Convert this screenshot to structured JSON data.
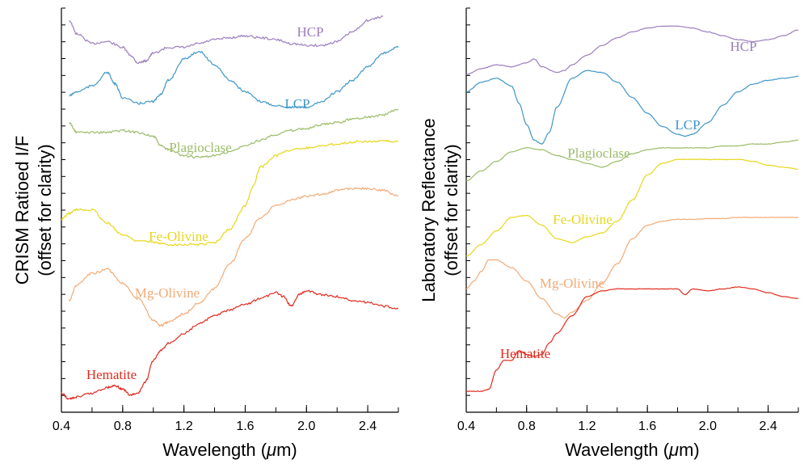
{
  "chart_data": [
    {
      "type": "line",
      "ylabel_line1": "CRISM Ratioed I/F",
      "ylabel_line2": "(offset for clarity)",
      "xlabel_prefix": "Wavelength (",
      "xlabel_mu": "μ",
      "xlabel_suffix": "m)",
      "xlim": [
        0.4,
        2.6
      ],
      "xticks": [
        "0.4",
        "0.8",
        "1.2",
        "1.6",
        "2.0",
        "2.4"
      ],
      "ylim": [
        0,
        10
      ],
      "grid": false,
      "series": [
        {
          "name": "HCP",
          "color": "#9b7ebf",
          "x": [
            0.45,
            0.5,
            0.6,
            0.7,
            0.8,
            0.85,
            0.9,
            0.95,
            1.0,
            1.1,
            1.2,
            1.3,
            1.4,
            1.5,
            1.6,
            1.7,
            1.8,
            1.9,
            2.0,
            2.1,
            2.2,
            2.3,
            2.4,
            2.5
          ],
          "y": [
            9.85,
            9.5,
            9.25,
            9.3,
            9.15,
            8.95,
            8.75,
            8.8,
            9.0,
            9.15,
            9.15,
            9.25,
            9.35,
            9.4,
            9.45,
            9.4,
            9.35,
            9.25,
            9.2,
            9.2,
            9.3,
            9.55,
            9.85,
            9.95
          ]
        },
        {
          "name": "LCP",
          "color": "#3f97c8",
          "x": [
            0.45,
            0.5,
            0.6,
            0.7,
            0.75,
            0.8,
            0.9,
            1.0,
            1.05,
            1.1,
            1.2,
            1.3,
            1.4,
            1.5,
            1.6,
            1.7,
            1.8,
            1.9,
            2.0,
            2.1,
            2.2,
            2.3,
            2.4,
            2.5,
            2.6
          ],
          "y": [
            7.9,
            8.0,
            8.15,
            8.5,
            8.2,
            7.85,
            7.7,
            7.75,
            7.95,
            8.3,
            8.85,
            9.05,
            8.7,
            8.3,
            8.0,
            7.75,
            7.65,
            7.6,
            7.6,
            7.75,
            8.0,
            8.3,
            8.65,
            9.0,
            9.15
          ]
        },
        {
          "name": "Plagioclase",
          "color": "#9bbb68",
          "x": [
            0.45,
            0.5,
            0.6,
            0.7,
            0.8,
            0.9,
            1.0,
            1.05,
            1.1,
            1.2,
            1.3,
            1.4,
            1.5,
            1.6,
            1.7,
            1.8,
            1.9,
            2.0,
            2.1,
            2.2,
            2.3,
            2.4,
            2.5,
            2.6
          ],
          "y": [
            7.2,
            6.95,
            6.95,
            6.95,
            7.0,
            6.95,
            6.85,
            6.6,
            6.5,
            6.35,
            6.3,
            6.35,
            6.45,
            6.6,
            6.75,
            6.9,
            7.0,
            7.05,
            7.15,
            7.2,
            7.3,
            7.35,
            7.4,
            7.55
          ]
        },
        {
          "name": "Fe-Olivine",
          "color": "#e6d71a",
          "x": [
            0.4,
            0.45,
            0.5,
            0.6,
            0.7,
            0.8,
            0.9,
            1.0,
            1.1,
            1.2,
            1.3,
            1.4,
            1.5,
            1.6,
            1.65,
            1.7,
            1.8,
            1.9,
            2.0,
            2.1,
            2.2,
            2.3,
            2.4,
            2.5,
            2.6
          ],
          "y": [
            4.7,
            4.85,
            4.95,
            4.95,
            4.6,
            4.3,
            4.15,
            4.1,
            4.05,
            4.05,
            4.05,
            4.1,
            4.45,
            5.05,
            5.55,
            6.05,
            6.35,
            6.5,
            6.55,
            6.6,
            6.65,
            6.7,
            6.72,
            6.72,
            6.72
          ]
        },
        {
          "name": "Mg-Olivine",
          "color": "#f2aa76",
          "x": [
            0.45,
            0.5,
            0.6,
            0.7,
            0.8,
            0.9,
            1.0,
            1.05,
            1.1,
            1.2,
            1.3,
            1.4,
            1.5,
            1.6,
            1.7,
            1.8,
            1.9,
            2.0,
            2.1,
            2.2,
            2.3,
            2.4,
            2.5,
            2.6
          ],
          "y": [
            2.6,
            3.0,
            3.3,
            3.4,
            3.05,
            2.65,
            2.1,
            1.95,
            2.05,
            2.25,
            2.55,
            2.9,
            3.55,
            4.2,
            4.75,
            5.05,
            5.2,
            5.3,
            5.35,
            5.45,
            5.5,
            5.5,
            5.45,
            5.3
          ]
        },
        {
          "name": "Hematite",
          "color": "#e02b20",
          "x": [
            0.4,
            0.45,
            0.5,
            0.6,
            0.7,
            0.75,
            0.8,
            0.85,
            0.9,
            0.95,
            1.0,
            1.05,
            1.1,
            1.2,
            1.3,
            1.4,
            1.5,
            1.6,
            1.7,
            1.8,
            1.85,
            1.9,
            1.95,
            2.0,
            2.1,
            2.2,
            2.3,
            2.4,
            2.5,
            2.6
          ],
          "y": [
            0.2,
            0.05,
            0.1,
            0.2,
            0.35,
            0.4,
            0.3,
            0.15,
            0.2,
            0.5,
            1.05,
            1.3,
            1.5,
            1.75,
            2.0,
            2.2,
            2.35,
            2.5,
            2.65,
            2.8,
            2.7,
            2.45,
            2.75,
            2.85,
            2.75,
            2.7,
            2.6,
            2.55,
            2.45,
            2.4
          ]
        }
      ]
    },
    {
      "type": "line",
      "ylabel_line1": "Laboratory Reflectance",
      "ylabel_line2": "(offset for clarity)",
      "xlabel_prefix": "Wavelength (",
      "xlabel_mu": "μ",
      "xlabel_suffix": "m)",
      "xlim": [
        0.4,
        2.6
      ],
      "xticks": [
        "0.4",
        "0.8",
        "1.2",
        "1.6",
        "2.0",
        "2.4"
      ],
      "ylim": [
        0,
        10
      ],
      "grid": false,
      "series": [
        {
          "name": "HCP",
          "color": "#9b7ebf",
          "x": [
            0.4,
            0.5,
            0.6,
            0.7,
            0.8,
            0.85,
            0.9,
            1.0,
            1.05,
            1.1,
            1.2,
            1.3,
            1.4,
            1.5,
            1.6,
            1.7,
            1.8,
            1.9,
            2.0,
            2.1,
            2.2,
            2.3,
            2.4,
            2.5,
            2.6
          ],
          "y": [
            8.45,
            8.6,
            8.7,
            8.65,
            8.75,
            8.85,
            8.65,
            8.5,
            8.55,
            8.7,
            8.95,
            9.2,
            9.4,
            9.55,
            9.65,
            9.7,
            9.7,
            9.65,
            9.55,
            9.45,
            9.35,
            9.3,
            9.35,
            9.45,
            9.6
          ]
        },
        {
          "name": "LCP",
          "color": "#3f97c8",
          "x": [
            0.4,
            0.5,
            0.6,
            0.7,
            0.75,
            0.8,
            0.85,
            0.9,
            0.95,
            1.0,
            1.1,
            1.2,
            1.3,
            1.4,
            1.5,
            1.6,
            1.7,
            1.8,
            1.85,
            1.9,
            2.0,
            2.1,
            2.2,
            2.3,
            2.4,
            2.5,
            2.6
          ],
          "y": [
            8.0,
            8.25,
            8.35,
            8.15,
            7.7,
            7.15,
            6.75,
            6.65,
            6.95,
            7.6,
            8.35,
            8.55,
            8.5,
            8.25,
            7.85,
            7.45,
            7.1,
            6.9,
            6.85,
            6.9,
            7.2,
            7.65,
            8.0,
            8.2,
            8.3,
            8.35,
            8.4
          ]
        },
        {
          "name": "Plagioclase",
          "color": "#9bbb68",
          "x": [
            0.4,
            0.5,
            0.6,
            0.7,
            0.8,
            0.9,
            1.0,
            1.1,
            1.2,
            1.3,
            1.4,
            1.5,
            1.6,
            1.7,
            1.8,
            1.9,
            2.0,
            2.1,
            2.2,
            2.3,
            2.4,
            2.5,
            2.6
          ],
          "y": [
            5.7,
            5.95,
            6.2,
            6.45,
            6.55,
            6.5,
            6.35,
            6.25,
            6.15,
            6.05,
            6.2,
            6.4,
            6.5,
            6.55,
            6.55,
            6.55,
            6.55,
            6.6,
            6.6,
            6.65,
            6.65,
            6.7,
            6.75
          ]
        },
        {
          "name": "Fe-Olivine",
          "color": "#e6d71a",
          "x": [
            0.4,
            0.5,
            0.6,
            0.7,
            0.8,
            0.9,
            1.0,
            1.1,
            1.2,
            1.3,
            1.4,
            1.5,
            1.6,
            1.7,
            1.8,
            1.9,
            2.0,
            2.1,
            2.2,
            2.3,
            2.4,
            2.5,
            2.6
          ],
          "y": [
            3.75,
            4.05,
            4.4,
            4.75,
            4.8,
            4.55,
            4.2,
            4.1,
            4.25,
            4.35,
            4.65,
            5.2,
            5.85,
            6.15,
            6.25,
            6.25,
            6.25,
            6.25,
            6.25,
            6.2,
            6.1,
            6.05,
            6.0
          ]
        },
        {
          "name": "Mg-Olivine",
          "color": "#f2aa76",
          "x": [
            0.4,
            0.45,
            0.5,
            0.55,
            0.6,
            0.7,
            0.8,
            0.9,
            1.0,
            1.05,
            1.1,
            1.2,
            1.3,
            1.4,
            1.5,
            1.6,
            1.7,
            1.8,
            1.9,
            2.0,
            2.1,
            2.2,
            2.3,
            2.4,
            2.5,
            2.6
          ],
          "y": [
            2.9,
            3.1,
            3.35,
            3.65,
            3.65,
            3.45,
            3.1,
            2.65,
            2.25,
            2.15,
            2.3,
            2.6,
            3.05,
            3.55,
            4.2,
            4.55,
            4.65,
            4.7,
            4.7,
            4.72,
            4.72,
            4.75,
            4.75,
            4.75,
            4.75,
            4.75
          ]
        },
        {
          "name": "Hematite",
          "color": "#e02b20",
          "x": [
            0.4,
            0.5,
            0.55,
            0.6,
            0.65,
            0.7,
            0.75,
            0.8,
            0.85,
            0.9,
            0.95,
            1.0,
            1.1,
            1.2,
            1.3,
            1.4,
            1.5,
            1.6,
            1.7,
            1.8,
            1.85,
            1.9,
            2.0,
            2.1,
            2.2,
            2.3,
            2.4,
            2.5,
            2.6
          ],
          "y": [
            0.25,
            0.25,
            0.3,
            0.8,
            1.05,
            1.05,
            1.3,
            1.2,
            1.15,
            1.2,
            1.5,
            1.75,
            2.2,
            2.7,
            2.85,
            2.9,
            2.9,
            2.9,
            2.9,
            2.9,
            2.75,
            2.9,
            2.85,
            2.9,
            2.95,
            2.9,
            2.8,
            2.7,
            2.65
          ]
        }
      ]
    }
  ]
}
